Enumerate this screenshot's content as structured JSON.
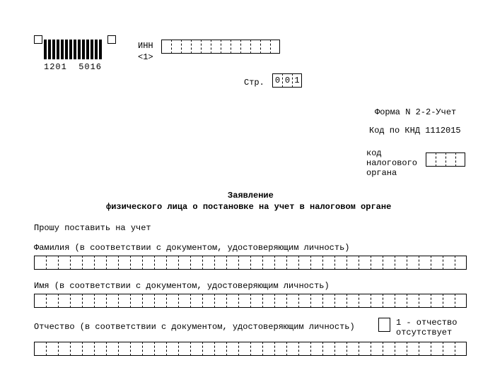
{
  "barcode": {
    "digits": "1201  5016"
  },
  "inn": {
    "label": "ИНН",
    "note": "<1>",
    "cells": 12
  },
  "page": {
    "label": "Стр.",
    "digits": [
      "0",
      "0",
      "1"
    ]
  },
  "form": {
    "form_no": "Форма N 2-2-Учет",
    "knd": "Код по КНД 1112015",
    "tax_code_label": "код\nналогового\nоргана",
    "tax_code_cells": 4
  },
  "title": {
    "line1": "Заявление",
    "line2": "физического лица о постановке на учет в налоговом органе"
  },
  "body": {
    "request": "Прошу поставить на учет",
    "surname_label": "Фамилия (в соответствии с документом, удостоверяющим личность)",
    "name_label": "Имя (в соответствии с документом, удостоверяющим личность)",
    "patronymic_label": "Отчество (в соответствии с документом, удостоверяющим личность)",
    "patronymic_flag_cells": 1,
    "patronymic_flag_note": "1 - отчество\nотсутствует",
    "long_row_cells": 36
  },
  "style": {
    "font": "Courier New",
    "fontsize_pt": 12,
    "color_text": "#000000",
    "color_bg": "#ffffff"
  }
}
